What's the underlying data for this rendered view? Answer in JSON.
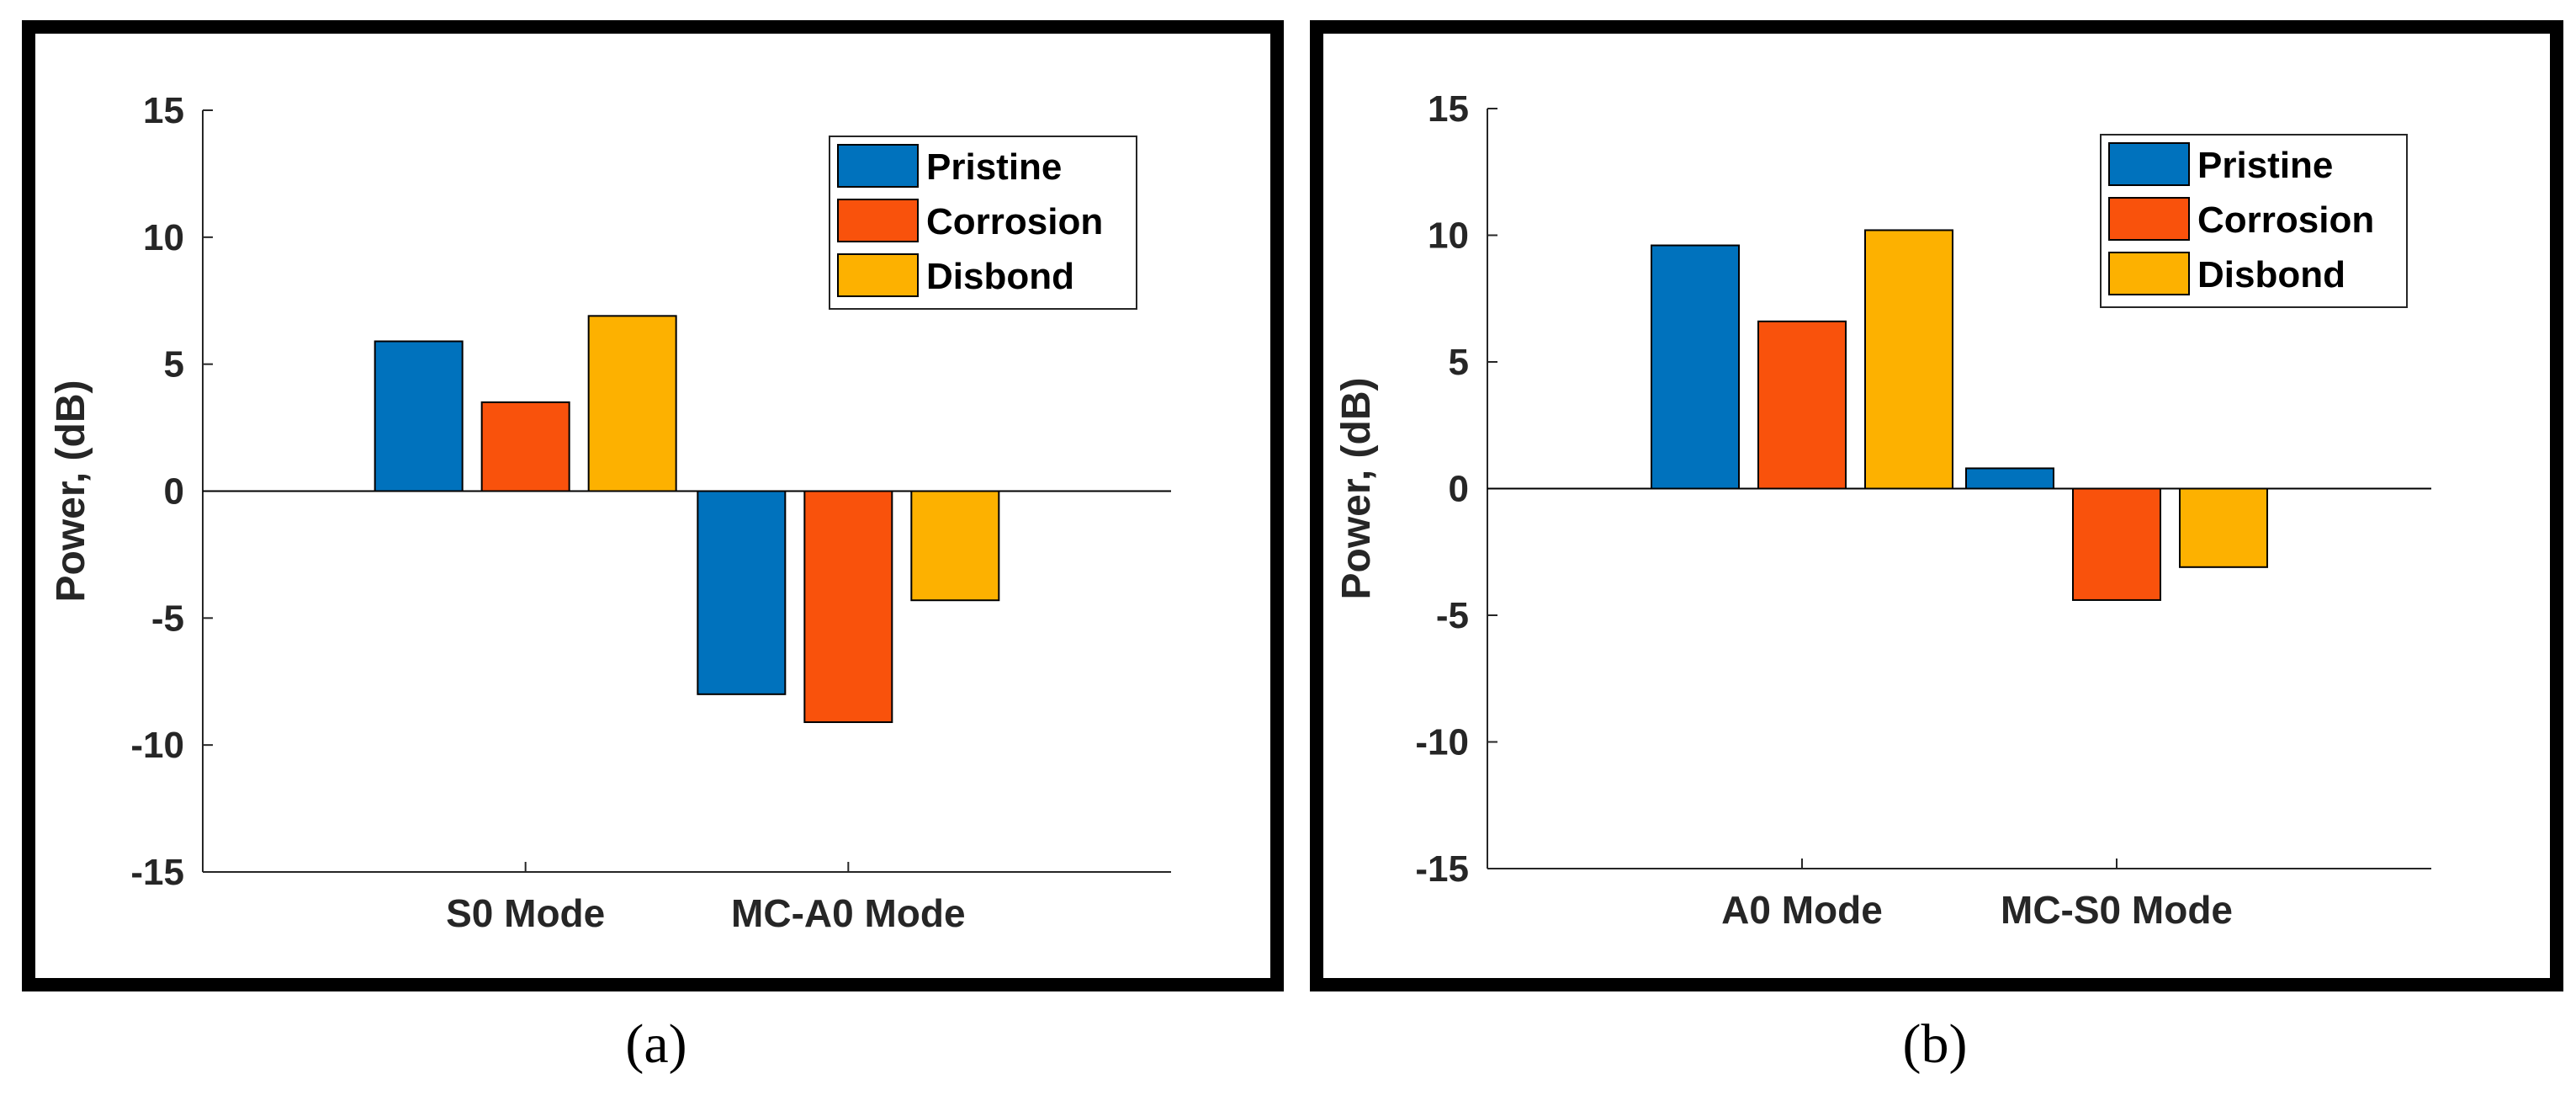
{
  "colors": {
    "Pristine": "#0072BD",
    "Corrosion": "#F9520C",
    "Disbond": "#FDB100",
    "axis": "#262626",
    "frame": "#000000"
  },
  "chart_data": [
    {
      "type": "bar",
      "panel_label": "(a)",
      "title": "",
      "xlabel": "",
      "ylabel": "Power, (dB)",
      "ylim": [
        -15,
        15
      ],
      "yticks": [
        "-15",
        "-10",
        "-5",
        "0",
        "5",
        "10",
        "15"
      ],
      "legend_position": "top-right",
      "categories": [
        "S0 Mode",
        "MC-A0 Mode"
      ],
      "series": [
        {
          "name": "Pristine",
          "values": [
            5.9,
            -8.0
          ]
        },
        {
          "name": "Corrosion",
          "values": [
            3.5,
            -9.1
          ]
        },
        {
          "name": "Disbond",
          "values": [
            6.9,
            -4.3
          ]
        }
      ]
    },
    {
      "type": "bar",
      "panel_label": "(b)",
      "title": "",
      "xlabel": "",
      "ylabel": "Power, (dB)",
      "ylim": [
        -15,
        15
      ],
      "yticks": [
        "-15",
        "-10",
        "-5",
        "0",
        "5",
        "10",
        "15"
      ],
      "legend_position": "top-right",
      "categories": [
        "A0 Mode",
        "MC-S0 Mode"
      ],
      "series": [
        {
          "name": "Pristine",
          "values": [
            9.6,
            0.8
          ]
        },
        {
          "name": "Corrosion",
          "values": [
            6.6,
            -4.4
          ]
        },
        {
          "name": "Disbond",
          "values": [
            10.2,
            -3.1
          ]
        }
      ]
    }
  ]
}
